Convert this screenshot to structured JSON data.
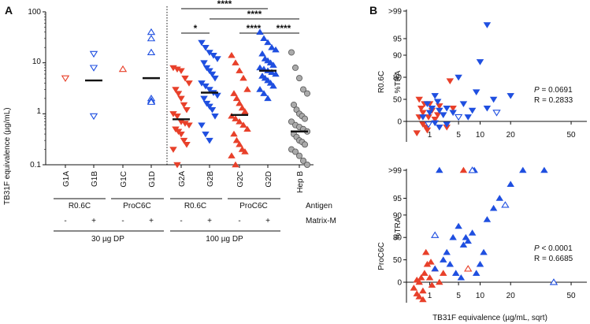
{
  "colors": {
    "red": "#e8402a",
    "blue": "#1f4fe0",
    "gray": "#8c8c8c",
    "black": "#111111"
  },
  "panel_a": {
    "letter": "A",
    "ylabel": "TB31F equivalence (µg/mL)",
    "yticks": [
      "100",
      "10",
      "1",
      "0.1"
    ],
    "groups": [
      "G1A",
      "G1B",
      "G1C",
      "G1D",
      "G2A",
      "G2B",
      "G2C",
      "G2D",
      "Hep B"
    ],
    "antigen_row": {
      "label": "Antigen",
      "items": [
        "R0.6C",
        "ProC6C",
        "R0.6C",
        "ProC6C"
      ]
    },
    "matrix_row": {
      "label": "Matrix-M",
      "items": [
        "-",
        "+",
        "-",
        "+",
        "-",
        "+",
        "-",
        "+"
      ]
    },
    "dose_row": {
      "items": [
        "30 µg DP",
        "100 µg DP"
      ]
    },
    "significance": [
      "*",
      "****",
      "****",
      "****",
      "****"
    ]
  },
  "panel_b": {
    "letter": "B",
    "top": {
      "title": "R0.6C",
      "ylabel": "%TRA",
      "p_label": "P",
      "p_text": " = 0.0691",
      "r_text": "R = 0.2833",
      "yticks": [
        ">99",
        "95",
        "90",
        "80",
        "50",
        "0"
      ],
      "xticks": [
        "1",
        "5",
        "10",
        "20",
        "50"
      ]
    },
    "bottom": {
      "title": "ProC6C",
      "ylabel": "%TRA",
      "p_label": "P",
      "p_text": " < 0.0001",
      "r_text": "R = 0.6685",
      "yticks": [
        ">99",
        "95",
        "90",
        "80",
        "50",
        "0"
      ],
      "xticks": [
        "1",
        "5",
        "10",
        "20",
        "50"
      ],
      "xlabel": "TB31F equivalence (µg/mL, sqrt)"
    }
  },
  "chart_data": [
    {
      "type": "scatter",
      "title": "",
      "xlabel": "",
      "ylabel": "TB31F equivalence (µg/mL)",
      "yscale": "log",
      "ylim": [
        0.1,
        100
      ],
      "categories": [
        "G1A",
        "G1B",
        "G1C",
        "G1D",
        "G2A",
        "G2B",
        "G2C",
        "G2D",
        "Hep B"
      ],
      "series": [
        {
          "name": "G1A",
          "color": "red",
          "marker": "tri-down-open",
          "values": [
            5.0
          ],
          "median": null
        },
        {
          "name": "G1B",
          "color": "blue",
          "marker": "tri-down-open",
          "values": [
            15,
            8,
            0.9
          ],
          "median": 4.5
        },
        {
          "name": "G1C",
          "color": "red",
          "marker": "tri-up-open",
          "values": [
            7.5
          ],
          "median": null
        },
        {
          "name": "G1D",
          "color": "blue",
          "marker": "tri-up-open",
          "values": [
            40,
            30,
            16,
            2.0,
            1.8,
            1.7
          ],
          "median": 5.0
        },
        {
          "name": "G2A",
          "color": "red",
          "marker": "tri-down",
          "values": [
            8,
            7.5,
            7,
            5,
            4,
            3,
            2.5,
            2,
            1.5,
            1.2,
            1.0,
            0.9,
            0.7,
            0.65,
            0.6,
            0.5,
            0.45,
            0.4,
            0.3,
            0.25,
            0.2,
            0.1
          ],
          "median": 0.78
        },
        {
          "name": "G2B",
          "color": "blue",
          "marker": "tri-down",
          "values": [
            25,
            20,
            16,
            14,
            12,
            10,
            8,
            7,
            6,
            5,
            4,
            3.5,
            3,
            2.6,
            2.3,
            2,
            1.6,
            1.4,
            1.2,
            0.9,
            0.6,
            0.4,
            0.3
          ],
          "median": 2.6
        },
        {
          "name": "G2C",
          "color": "red",
          "marker": "tri-up",
          "values": [
            14,
            10,
            7,
            5,
            3,
            2.5,
            2,
            1.6,
            1.3,
            1.1,
            0.9,
            0.8,
            0.7,
            0.6,
            0.5,
            0.4,
            0.3,
            0.25,
            0.2,
            0.18,
            0.15,
            0.1
          ],
          "median": 0.95
        },
        {
          "name": "G2D",
          "color": "blue",
          "marker": "tri-up",
          "values": [
            40,
            30,
            25,
            20,
            18,
            15,
            12,
            11,
            10,
            9,
            8,
            7.5,
            7,
            6.5,
            6,
            5.5,
            5,
            4.5,
            4,
            3.5,
            3,
            2.5,
            2
          ],
          "median": 7.0
        },
        {
          "name": "Hep B",
          "color": "gray",
          "marker": "circle",
          "values": [
            16,
            8,
            5,
            3,
            2.5,
            1.5,
            1.2,
            1.0,
            0.9,
            0.8,
            0.7,
            0.6,
            0.55,
            0.5,
            0.45,
            0.4,
            0.35,
            0.3,
            0.28,
            0.25,
            0.2,
            0.18,
            0.15,
            0.12,
            0.1
          ],
          "median": 0.45
        }
      ],
      "significance": [
        {
          "from": "G2A",
          "to": "G2B",
          "label": "*"
        },
        {
          "from": "G2A",
          "to": "G2D",
          "label": "****"
        },
        {
          "from": "G2B",
          "to": "Hep B",
          "label": "****"
        },
        {
          "from": "G2C",
          "to": "G2D",
          "label": "****"
        },
        {
          "from": "G2D",
          "to": "Hep B",
          "label": "****"
        }
      ]
    },
    {
      "type": "scatter",
      "title": "R0.6C",
      "xlabel": "",
      "ylabel": "%TRA",
      "xscale": "sqrt",
      "xlim": [
        0,
        60
      ],
      "yticks": [
        ">99",
        "95",
        "90",
        "80",
        "50",
        "0"
      ],
      "series": [
        {
          "name": "R0.6C - (G1A/G2A)",
          "color": "red",
          "marker": "tri-down",
          "points": [
            [
              0.3,
              50
            ],
            [
              0.4,
              30
            ],
            [
              0.5,
              20
            ],
            [
              0.6,
              40
            ],
            [
              0.7,
              -20
            ],
            [
              0.9,
              10
            ],
            [
              1.0,
              40
            ],
            [
              1.2,
              25
            ],
            [
              1.5,
              5
            ],
            [
              2,
              35
            ],
            [
              0.2,
              -40
            ],
            [
              0.5,
              -10
            ],
            [
              3,
              -20
            ],
            [
              3.5,
              75
            ],
            [
              4,
              30
            ],
            [
              0.3,
              10
            ],
            [
              0.8,
              -30
            ],
            [
              1.8,
              15
            ]
          ]
        },
        {
          "name": "R0.6C + (G1B/G2B)",
          "color": "blue",
          "marker": "tri-down",
          "points": [
            [
              0.5,
              10
            ],
            [
              1.0,
              20
            ],
            [
              1.2,
              30
            ],
            [
              1.5,
              -5
            ],
            [
              2,
              25
            ],
            [
              2.5,
              15
            ],
            [
              3,
              -10
            ],
            [
              4,
              20
            ],
            [
              5,
              80
            ],
            [
              6,
              40
            ],
            [
              7,
              10
            ],
            [
              10,
              87
            ],
            [
              12,
              97
            ],
            [
              12,
              30
            ],
            [
              14,
              50
            ],
            [
              20,
              55
            ],
            [
              2,
              -20
            ],
            [
              8,
              25
            ],
            [
              0.8,
              40
            ],
            [
              1.8,
              45
            ],
            [
              3,
              30
            ],
            [
              9,
              60
            ],
            [
              1.5,
              55
            ]
          ]
        },
        {
          "name": "R0.6C open",
          "color": "blue",
          "marker": "tri-down-open",
          "points": [
            [
              0.9,
              -10
            ],
            [
              5,
              10
            ],
            [
              15,
              20
            ]
          ]
        }
      ],
      "stats": {
        "P": "0.0691",
        "R": "0.2833"
      }
    },
    {
      "type": "scatter",
      "title": "ProC6C",
      "xlabel": "TB31F equivalence (µg/mL, sqrt)",
      "ylabel": "%TRA",
      "xscale": "sqrt",
      "xlim": [
        0,
        60
      ],
      "yticks": [
        ">99",
        "95",
        "90",
        "80",
        "50",
        "0"
      ],
      "series": [
        {
          "name": "ProC6C - (G1C/G2C)",
          "color": "red",
          "marker": "tri-up",
          "points": [
            [
              0.1,
              -20
            ],
            [
              0.2,
              -40
            ],
            [
              0.3,
              0
            ],
            [
              0.4,
              10
            ],
            [
              0.5,
              -30
            ],
            [
              0.6,
              20
            ],
            [
              0.8,
              40
            ],
            [
              1.0,
              10
            ],
            [
              1.2,
              -10
            ],
            [
              1.5,
              30
            ],
            [
              2,
              0
            ],
            [
              2.5,
              20
            ],
            [
              0.3,
              -50
            ],
            [
              0.7,
              60
            ],
            [
              6,
              99
            ],
            [
              8,
              99
            ],
            [
              7,
              30
            ],
            [
              0.2,
              5
            ],
            [
              0.5,
              -60
            ],
            [
              1.1,
              45
            ]
          ]
        },
        {
          "name": "ProC6C + (G1D/G2D)",
          "color": "blue",
          "marker": "tri-up",
          "points": [
            [
              2,
              99
            ],
            [
              3,
              60
            ],
            [
              3.5,
              40
            ],
            [
              4,
              80
            ],
            [
              5,
              85
            ],
            [
              6,
              70
            ],
            [
              6.5,
              80
            ],
            [
              7,
              75
            ],
            [
              8,
              82
            ],
            [
              9,
              20
            ],
            [
              10,
              40
            ],
            [
              12,
              88
            ],
            [
              14,
              92
            ],
            [
              16,
              95
            ],
            [
              20,
              97
            ],
            [
              25,
              99
            ],
            [
              35,
              99
            ],
            [
              1.5,
              30
            ],
            [
              2.5,
              50
            ],
            [
              4.5,
              20
            ],
            [
              5.5,
              10
            ],
            [
              8.5,
              99
            ],
            [
              11,
              60
            ]
          ]
        },
        {
          "name": "ProC6C open",
          "color": "blue",
          "marker": "tri-up-open",
          "points": [
            [
              1.5,
              81
            ],
            [
              8,
              99
            ],
            [
              18,
              93
            ],
            [
              40,
              0
            ]
          ]
        },
        {
          "name": "ProC6C open red",
          "color": "red",
          "marker": "tri-up-open",
          "points": [
            [
              7,
              30
            ]
          ]
        }
      ],
      "stats": {
        "P": "< 0.0001",
        "R": "0.6685"
      }
    }
  ]
}
